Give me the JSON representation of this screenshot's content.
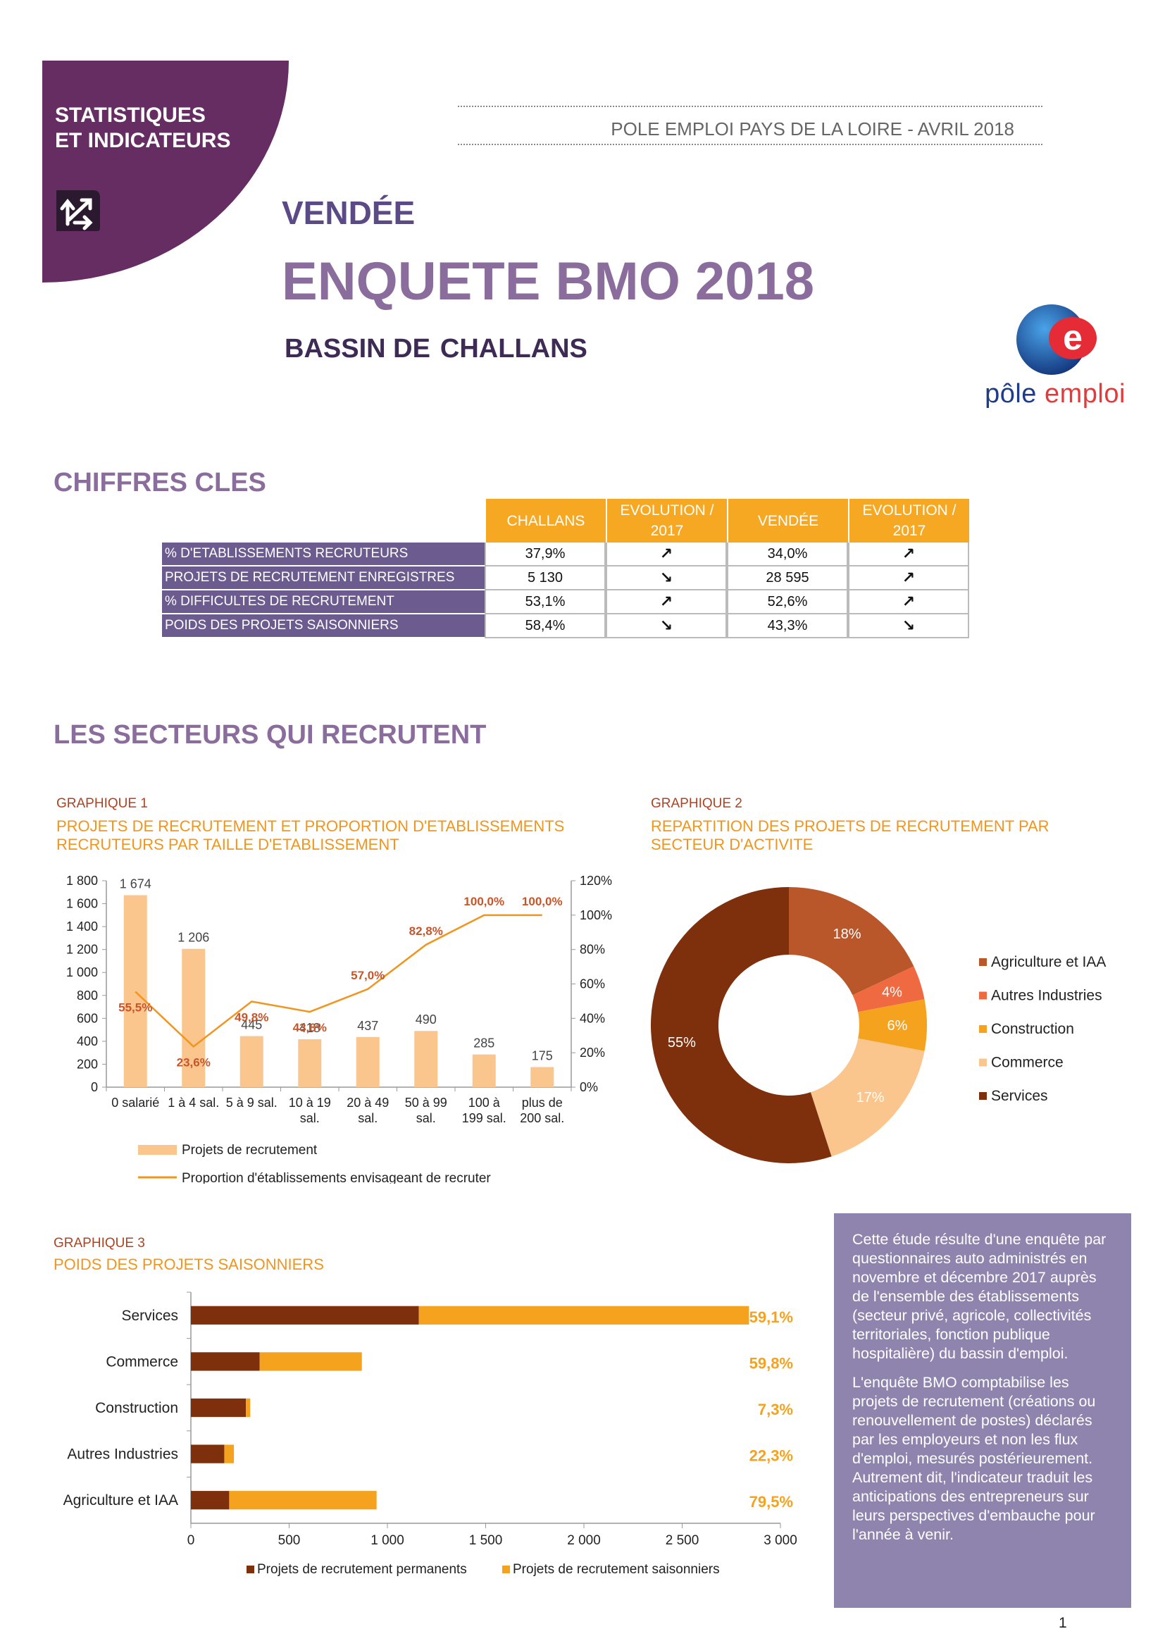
{
  "corner": {
    "line1": "STATISTIQUES",
    "line2": "ET INDICATEURS",
    "icon": "swap-arrows-icon"
  },
  "header": {
    "source": "POLE EMPLOI PAYS DE LA LOIRE - AVRIL 2018"
  },
  "title": {
    "department": "VENDÉE",
    "main": "ENQUETE BMO 2018",
    "bassin_label": "BASSIN DE",
    "bassin_name": "CHALLANS"
  },
  "logo": {
    "word1": "pôle",
    "word2": "emploi",
    "letter": "e"
  },
  "key_figures": {
    "section_title": "CHIFFRES CLES",
    "headers": [
      "CHALLANS",
      "EVOLUTION / 2017",
      "VENDÉE",
      "EVOLUTION / 2017"
    ],
    "header_evolution_line1": "EVOLUTION /",
    "header_evolution_line2": "2017",
    "rows": [
      {
        "label": "% D'ETABLISSEMENTS RECRUTEURS",
        "challans": "37,9%",
        "evo_challans": "↗",
        "vendee": "34,0%",
        "evo_vendee": "↗"
      },
      {
        "label": "PROJETS DE RECRUTEMENT ENREGISTRES",
        "challans": "5 130",
        "evo_challans": "↘",
        "vendee": "28 595",
        "evo_vendee": "↗"
      },
      {
        "label": "% DIFFICULTES DE RECRUTEMENT",
        "challans": "53,1%",
        "evo_challans": "↗",
        "vendee": "52,6%",
        "evo_vendee": "↗"
      },
      {
        "label": "POIDS DES PROJETS SAISONNIERS",
        "challans": "58,4%",
        "evo_challans": "↘",
        "vendee": "43,3%",
        "evo_vendee": "↘"
      }
    ]
  },
  "sectors": {
    "section_title": "LES SECTEURS QUI RECRUTENT"
  },
  "graph1": {
    "tag": "GRAPHIQUE 1",
    "title_line1": "PROJETS DE RECRUTEMENT ET PROPORTION D'ETABLISSEMENTS",
    "title_line2": "RECRUTEURS PAR TAILLE D'ETABLISSEMENT"
  },
  "graph2": {
    "tag": "GRAPHIQUE 2",
    "title_line1": "REPARTITION DES PROJETS DE RECRUTEMENT PAR",
    "title_line2": "SECTEUR D'ACTIVITE"
  },
  "graph3": {
    "tag": "GRAPHIQUE 3",
    "title_line1": "POIDS DES PROJETS SAISONNIERS"
  },
  "chart_data": [
    {
      "type": "bar",
      "categories": [
        [
          "0 salarié"
        ],
        [
          "1 à 4 sal."
        ],
        [
          "5 à 9 sal."
        ],
        [
          "10 à 19",
          "sal."
        ],
        [
          "20 à 49",
          "sal."
        ],
        [
          "50 à 99",
          "sal."
        ],
        [
          "100 à",
          "199 sal."
        ],
        [
          "plus de",
          "200 sal."
        ]
      ],
      "series": [
        {
          "name": "Projets de recrutement",
          "kind": "bar",
          "axis": "left",
          "values": [
            1674,
            1206,
            445,
            418,
            437,
            490,
            285,
            175
          ],
          "labels": [
            "1 674",
            "1 206",
            "445",
            "418",
            "437",
            "490",
            "285",
            "175"
          ],
          "color": "#fbc58e"
        },
        {
          "name": "Proportion d'établissements envisageant de recruter",
          "kind": "line",
          "axis": "right",
          "values": [
            55.5,
            23.6,
            49.8,
            43.8,
            57.0,
            82.8,
            100.0,
            100.0
          ],
          "labels": [
            "55,5%",
            "23,6%",
            "49,8%",
            "43,8%",
            "57,0%",
            "82,8%",
            "100,0%",
            "100,0%"
          ],
          "color": "#f0951e",
          "label_color": "#c7552a"
        }
      ],
      "yleft": {
        "min": 0,
        "max": 1800,
        "ticks": [
          "0",
          "200",
          "400",
          "600",
          "800",
          "1 000",
          "1 200",
          "1 400",
          "1 600",
          "1 800"
        ]
      },
      "yright": {
        "min": 0,
        "max": 120,
        "ticks": [
          "0%",
          "20%",
          "40%",
          "60%",
          "80%",
          "100%",
          "120%"
        ]
      },
      "legend_position": "bottom"
    },
    {
      "type": "pie",
      "donut": true,
      "slices": [
        {
          "name": "Agriculture et IAA",
          "value": 18,
          "label": "18%",
          "color": "#b9562a"
        },
        {
          "name": "Autres Industries",
          "value": 4,
          "label": "4%",
          "color": "#ef6a40"
        },
        {
          "name": "Construction",
          "value": 6,
          "label": "6%",
          "color": "#f5a21e"
        },
        {
          "name": "Commerce",
          "value": 17,
          "label": "17%",
          "color": "#fbc58e"
        },
        {
          "name": "Services",
          "value": 55,
          "label": "55%",
          "color": "#7e2f0b"
        }
      ],
      "legend_position": "right"
    },
    {
      "type": "bar",
      "orientation": "horizontal",
      "stacked": true,
      "categories": [
        "Services",
        "Commerce",
        "Construction",
        "Autres Industries",
        "Agriculture et IAA"
      ],
      "series": [
        {
          "name": "Projets de recrutement permanents",
          "values": [
            1160,
            350,
            280,
            170,
            195
          ],
          "color": "#7e2f0b"
        },
        {
          "name": "Projets de recrutement saisonniers",
          "values": [
            1680,
            520,
            22,
            49,
            750
          ],
          "color": "#f5a21e"
        }
      ],
      "share_labels": [
        "59,1%",
        "59,8%",
        "7,3%",
        "22,3%",
        "79,5%"
      ],
      "xaxis": {
        "min": 0,
        "max": 3000,
        "ticks": [
          "0",
          "500",
          "1 000",
          "1 500",
          "2 000",
          "2 500",
          "3 000"
        ]
      },
      "legend_position": "bottom"
    }
  ],
  "info_box": {
    "paragraph1": "Cette étude résulte d'une enquête par questionnaires auto administrés en novembre et décembre 2017 auprès de l'ensemble des établissements (secteur privé, agricole, collectivités territoriales, fonction publique hospitalière) du bassin d'emploi.",
    "paragraph2": "L'enquête BMO comptabilise les projets de recrutement (créations ou renouvellement de postes) déclarés par les employeurs et non les flux d'emploi, mesurés postérieurement. Autrement dit, l'indicateur traduit les anticipations des entrepreneurs sur leurs perspectives d'embauche pour l'année à venir."
  },
  "page": {
    "number": "1"
  },
  "colors": {
    "purple_dark": "#662d63",
    "purple_table": "#6b5b8e",
    "orange_header": "#f7a823",
    "info_bg": "#8f84ad",
    "title_mauve": "#8a6d9c"
  }
}
